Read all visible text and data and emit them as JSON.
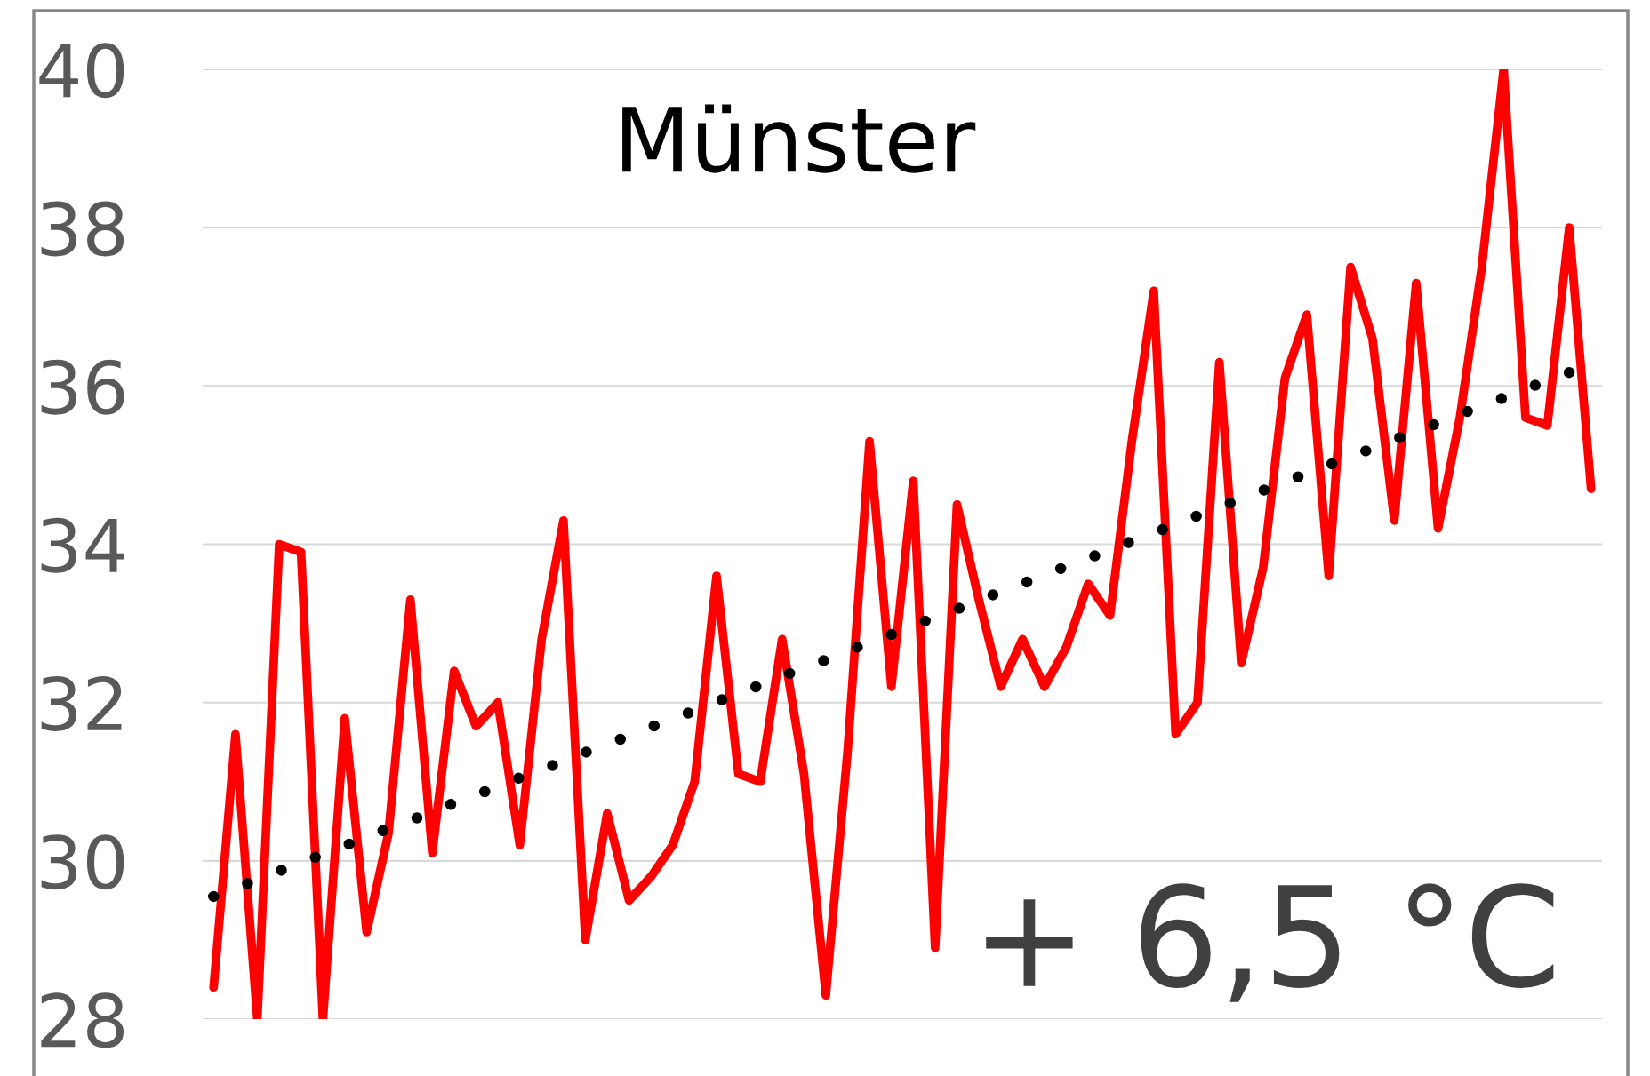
{
  "chart_data": {
    "type": "line",
    "title": "Münster",
    "annotations": [
      "+ 6,5 °C"
    ],
    "categories": [
      null,
      null,
      null,
      null,
      null,
      null,
      null,
      null,
      null,
      null,
      null,
      null,
      null,
      null,
      null,
      null,
      null,
      null,
      null,
      null,
      null,
      null,
      null,
      null,
      null,
      null,
      null,
      null,
      null,
      null,
      null,
      null,
      null,
      null,
      null,
      null,
      null,
      null,
      null,
      null,
      null,
      null,
      null,
      null,
      null,
      null,
      null,
      null,
      null,
      null,
      null,
      null,
      null,
      null,
      null,
      null,
      null,
      null,
      null,
      null,
      null,
      null,
      null,
      null
    ],
    "series": [
      {
        "color": "#ff0000",
        "line_style": "solid",
        "values": [
          28.4,
          31.6,
          28.0,
          34.0,
          33.9,
          28.0,
          31.8,
          29.1,
          30.35,
          33.3,
          30.1,
          32.4,
          31.7,
          32.0,
          30.2,
          32.8,
          34.3,
          29.0,
          30.6,
          29.5,
          29.8,
          30.2,
          31.0,
          33.6,
          31.1,
          31.0,
          32.8,
          31.1,
          28.3,
          31.4,
          35.3,
          32.2,
          34.8,
          28.9,
          34.5,
          33.3,
          32.2,
          32.8,
          32.2,
          32.7,
          33.5,
          33.1,
          35.3,
          37.2,
          31.6,
          32.0,
          36.3,
          32.5,
          33.7,
          36.1,
          36.9,
          33.6,
          37.5,
          36.6,
          34.3,
          37.3,
          34.2,
          35.6,
          37.5,
          40.0,
          35.6,
          35.5,
          38.0,
          34.7
        ]
      },
      {
        "color": "#000000",
        "line_style": "dotted",
        "values": [
          29.55,
          29.66,
          29.76,
          29.87,
          29.98,
          30.08,
          30.19,
          30.3,
          30.41,
          30.51,
          30.62,
          30.73,
          30.83,
          30.94,
          31.05,
          31.15,
          31.26,
          31.37,
          31.47,
          31.58,
          31.69,
          31.79,
          31.9,
          32.01,
          32.11,
          32.22,
          32.33,
          32.44,
          32.54,
          32.65,
          32.76,
          32.86,
          32.97,
          33.08,
          33.18,
          33.29,
          33.4,
          33.5,
          33.61,
          33.72,
          33.82,
          33.93,
          34.04,
          34.14,
          34.25,
          34.36,
          34.47,
          34.57,
          34.68,
          34.79,
          34.89,
          35.0,
          35.11,
          35.21,
          35.32,
          35.43,
          35.53,
          35.64,
          35.75,
          35.85,
          35.96,
          36.07,
          36.17,
          null
        ]
      }
    ],
    "ylim": [
      28,
      40
    ],
    "yticks": [
      28,
      30,
      32,
      34,
      36,
      38,
      40
    ],
    "grid": "y",
    "tick_labels": "y",
    "marker": "none"
  }
}
